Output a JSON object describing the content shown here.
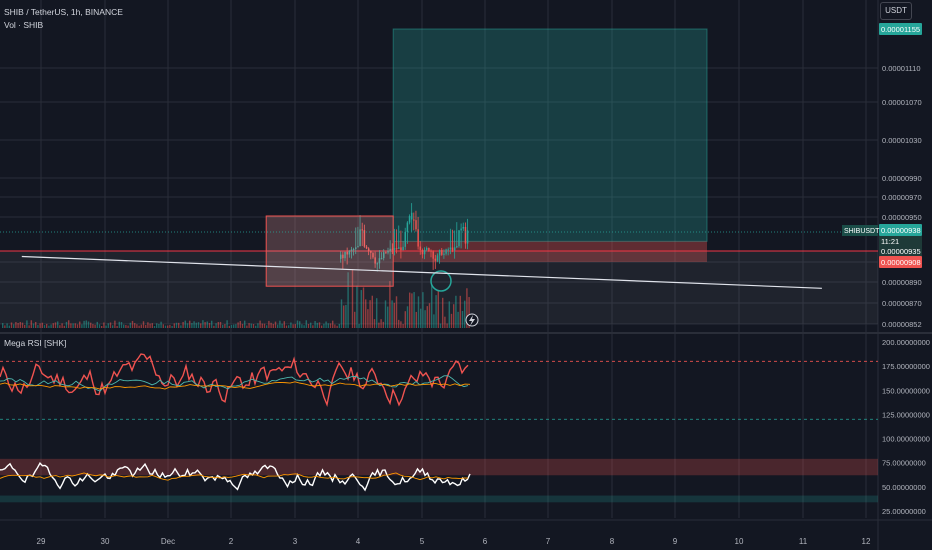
{
  "header": {
    "symbol_line": "SHIB / TetherUS, 1h, BINANCE",
    "volume_line": "Vol · SHIB"
  },
  "currency_button": "USDT",
  "colors": {
    "bg": "#131722",
    "grid": "#2a2e39",
    "up": "#26a69a",
    "down": "#ef5350",
    "white": "#ffffff",
    "orange": "#ff9800",
    "teal": "#4db6ac",
    "zone_fill": "#ef5350",
    "target_fill": "#26a69a",
    "level_line": "#f23645"
  },
  "chart_data": [
    {
      "type": "candlestick",
      "title": "",
      "series_label": "SHIBUSDT",
      "x_ticks": [
        "29",
        "30",
        "Dec",
        "2",
        "3",
        "4",
        "5",
        "6",
        "7",
        "8",
        "9",
        "10",
        "11",
        "12"
      ],
      "y_ticks": [
        "0.00001110",
        "0.00001070",
        "0.00001030",
        "0.00000990",
        "0.00000970",
        "0.00000950",
        "0.00000890",
        "0.00000870",
        "0.00000852"
      ],
      "ylim": [
        8.5e-06,
        1.16e-05
      ],
      "price_tags": {
        "target": "0.00001155",
        "current": "0.00000938",
        "countdown": "11:21",
        "mid": "0.00000935",
        "stop": "0.00000908"
      },
      "range_box": {
        "x": [
          3.55,
          5.55
        ],
        "y": [
          8.86e-06,
          9.51e-06
        ]
      },
      "target_zone": {
        "x": [
          5.55,
          10.5
        ],
        "y": [
          9.36e-06,
          1.155e-05
        ]
      },
      "stop_zone": {
        "x": [
          5.55,
          10.5
        ],
        "y": [
          9.08e-06,
          9.36e-06
        ]
      },
      "horizontal_level": 9.22e-06,
      "trendline": {
        "x": [
          -0.3,
          12.3
        ],
        "y": [
          9.15e-06,
          8.84e-06
        ]
      },
      "position_label": "SHIBUSDT"
    },
    {
      "type": "line",
      "title": "Mega RSI [SHK]",
      "y_ticks": [
        "200.00000000",
        "175.00000000",
        "150.00000000",
        "125.00000000",
        "100.00000000",
        "75.00000000",
        "50.00000000",
        "25.00000000"
      ],
      "ylim": [
        10,
        210
      ],
      "upper_band_a": 180,
      "lower_band_a": 120,
      "band_b": [
        62,
        79
      ],
      "band_c": [
        34,
        41
      ]
    }
  ]
}
